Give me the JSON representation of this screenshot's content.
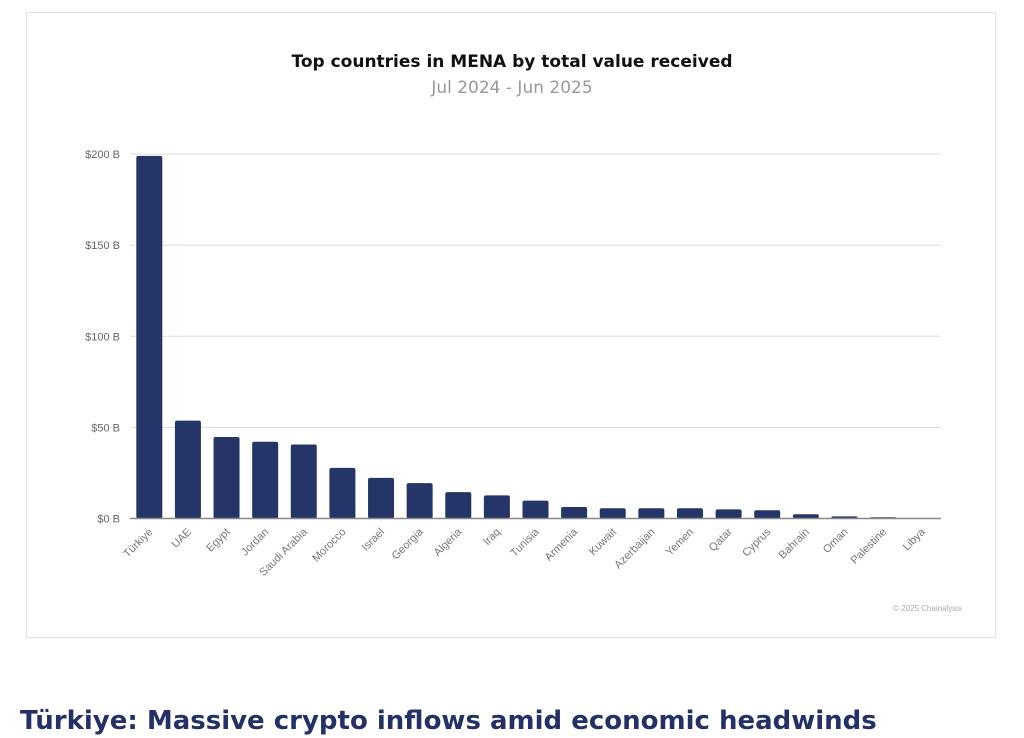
{
  "chart_data": {
    "type": "bar",
    "title": "Top countries in MENA by total value received",
    "subtitle": "Jul 2024 - Jun 2025",
    "xlabel": "",
    "ylabel": "",
    "ylim": [
      0,
      200
    ],
    "yticks": [
      0,
      50,
      100,
      150,
      200
    ],
    "ytick_labels": [
      "$0 B",
      "$50 B",
      "$100 B",
      "$150 B",
      "$200 B"
    ],
    "grid": true,
    "bar_color": "#263568",
    "categories": [
      "Türkiye",
      "UAE",
      "Egypt",
      "Jordan",
      "Saudi Arabia",
      "Morocco",
      "Israel",
      "Georgia",
      "Algeria",
      "Iraq",
      "Tunisia",
      "Armenia",
      "Kuwait",
      "Azerbaijan",
      "Yemen",
      "Qatar",
      "Cyprus",
      "Bahrain",
      "Oman",
      "Palestine",
      "Libya"
    ],
    "values": [
      199,
      53.7,
      44.7,
      42.1,
      40.6,
      27.8,
      22.3,
      19.4,
      14.5,
      12.7,
      9.8,
      6.3,
      5.6,
      5.6,
      5.6,
      5.0,
      4.5,
      2.3,
      1.2,
      0.7,
      0.1
    ],
    "units": "USD billions"
  },
  "copyright": "© 2025 Chainalysis",
  "article": {
    "heading": "Türkiye: Massive crypto inflows amid economic headwinds"
  }
}
